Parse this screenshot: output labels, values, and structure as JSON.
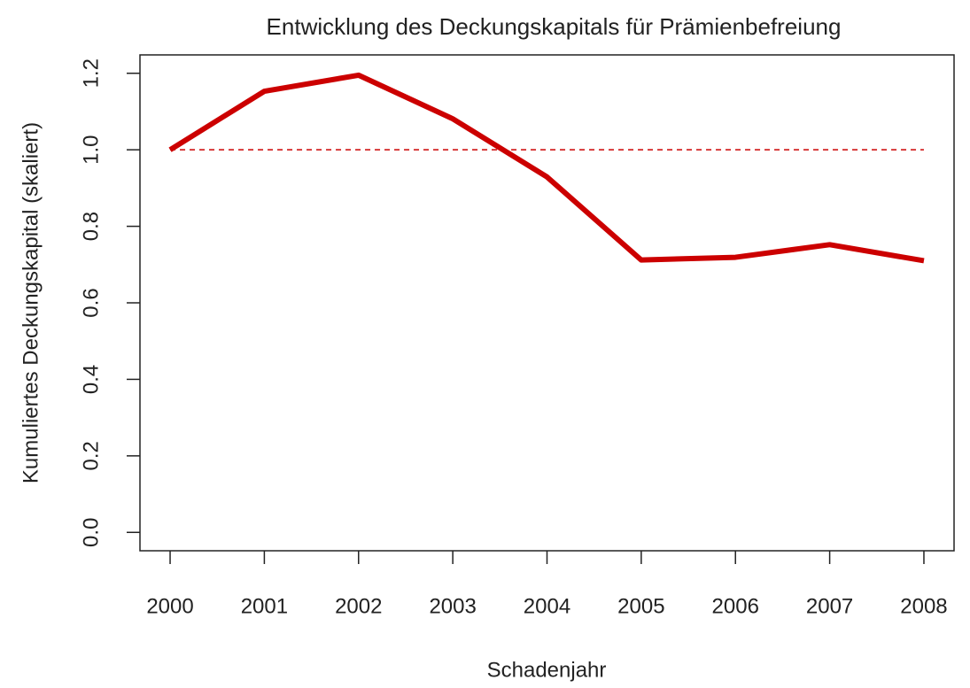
{
  "chart_data": {
    "type": "line",
    "title": "Entwicklung des Deckungskapitals für Prämienbefreiung",
    "xlabel": "Schadenjahr",
    "ylabel": "Kumuliertes Deckungskapital (skaliert)",
    "x": [
      2000,
      2001,
      2002,
      2003,
      2004,
      2005,
      2006,
      2007,
      2008
    ],
    "series": [
      {
        "color": "#cc0000",
        "values": [
          1.0,
          1.153,
          1.195,
          1.081,
          0.929,
          0.712,
          0.719,
          0.752,
          0.71
        ]
      }
    ],
    "reference_line": {
      "value": 1,
      "color": "#cc0000",
      "style": "dashed"
    },
    "xlim": [
      1999.68,
      2008.32
    ],
    "xticks": [
      2000,
      2001,
      2002,
      2003,
      2004,
      2005,
      2006,
      2007,
      2008
    ],
    "ylim": [
      -0.048,
      1.248
    ],
    "yticks": [
      {
        "value": 0,
        "label": "0.0"
      },
      0.2,
      0.4,
      0.6,
      0.8,
      {
        "value": 1,
        "label": "1.0"
      },
      1.2
    ],
    "grid": false
  }
}
